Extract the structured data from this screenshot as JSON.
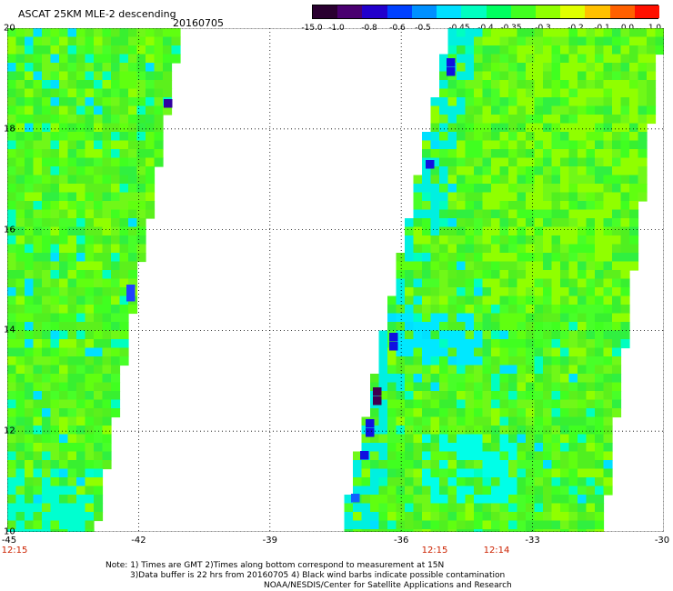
{
  "header": {
    "title": "ASCAT 25KM MLE-2 descending",
    "date": "20160705"
  },
  "colorbar": {
    "labels": [
      "-15.0",
      "-1.0",
      "-0.8",
      "-0.6",
      "-0.5",
      "-0.45",
      "-0.4",
      "-0.35",
      "-0.3",
      "-0.2",
      "-0.1",
      "0.0",
      "1.0"
    ],
    "colors": [
      "#2a0030",
      "#4a0070",
      "#2200cc",
      "#0040ff",
      "#0090ff",
      "#00e0ff",
      "#00ffc0",
      "#00ff60",
      "#40ff20",
      "#90ff00",
      "#e0ff00",
      "#ffc000",
      "#ff6000",
      "#ff1000"
    ]
  },
  "axes": {
    "lat_labels": [
      "20",
      "18",
      "16",
      "14",
      "12",
      "10"
    ],
    "lon_labels": [
      "-45",
      "-42",
      "-39",
      "-36",
      "-33",
      "-30"
    ],
    "lat_range": [
      10,
      20
    ],
    "lon_range": [
      -45,
      -30
    ]
  },
  "pass_times": [
    "12:15",
    "12:15",
    "12:14"
  ],
  "notes": [
    "Note: 1) Times are GMT 2)Times along bottom correspond to measurement at 15N",
    "3)Data buffer is 22 hrs from 20160705 4) Black wind barbs indicate possible contamination",
    "NOAA/NESDIS/Center for Satellite Applications and Research"
  ]
}
